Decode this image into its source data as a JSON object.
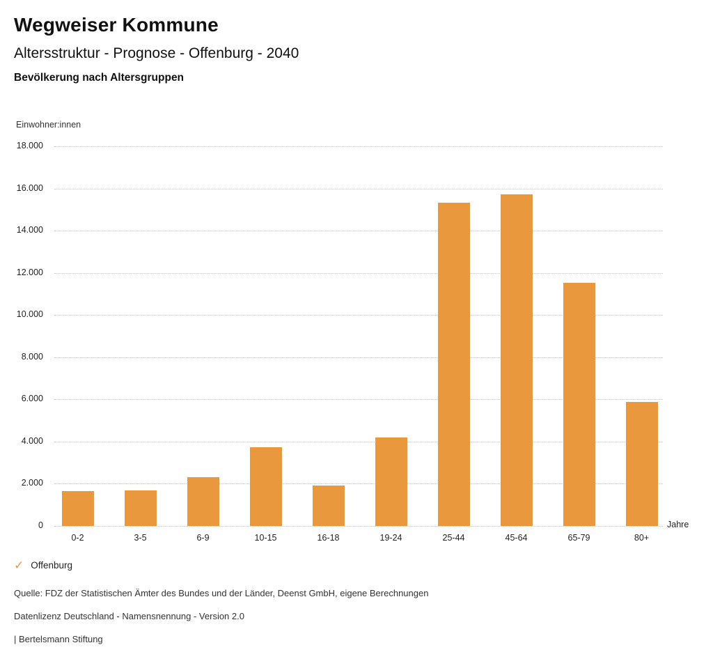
{
  "header": {
    "title": "Wegweiser Kommune",
    "subtitle": "Altersstruktur - Prognose - Offenburg - 2040",
    "chart_heading": "Bevölkerung nach Altersgruppen"
  },
  "chart_data": {
    "type": "bar",
    "title": "Bevölkerung nach Altersgruppen",
    "ylabel": "Einwohner:innen",
    "xlabel": "Jahre",
    "categories": [
      "0-2",
      "3-5",
      "6-9",
      "10-15",
      "16-18",
      "19-24",
      "25-44",
      "45-64",
      "65-79",
      "80+"
    ],
    "values": [
      1650,
      1680,
      2310,
      3720,
      1910,
      4190,
      15320,
      15710,
      11540,
      5890
    ],
    "series_name": "Offenburg",
    "ylim": [
      0,
      18000
    ],
    "ytick_step": 2000,
    "ytick_labels": [
      "0",
      "2.000",
      "4.000",
      "6.000",
      "8.000",
      "10.000",
      "12.000",
      "14.000",
      "16.000",
      "18.000"
    ],
    "bar_color": "#ea983d",
    "grid": true,
    "gridline_style": "dotted",
    "legend_position": "bottom-left"
  },
  "legend": {
    "check_icon": "✓",
    "label": "Offenburg"
  },
  "footer": {
    "source": "Quelle: FDZ der Statistischen Ämter des Bundes und der Länder, Deenst GmbH, eigene Berechnungen",
    "license": "Datenlizenz Deutschland - Namensnennung - Version 2.0",
    "attribution": "| Bertelsmann Stiftung"
  }
}
